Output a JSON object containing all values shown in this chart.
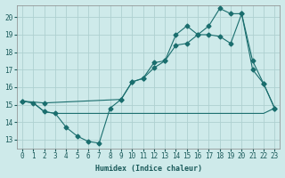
{
  "xlabel": "Humidex (Indice chaleur)",
  "background_color": "#ceeaea",
  "grid_color": "#aed0d0",
  "line_color": "#1a6e6e",
  "xlim": [
    -0.5,
    23.5
  ],
  "ylim": [
    12.5,
    20.7
  ],
  "yticks": [
    13,
    14,
    15,
    16,
    17,
    18,
    19,
    20
  ],
  "xticks": [
    0,
    1,
    2,
    3,
    4,
    5,
    6,
    7,
    8,
    9,
    10,
    11,
    12,
    13,
    14,
    15,
    16,
    17,
    18,
    19,
    20,
    21,
    22,
    23
  ],
  "series1_x": [
    0,
    1,
    2,
    3,
    4,
    5,
    6,
    7,
    8,
    9,
    10,
    11,
    12,
    13,
    14,
    15,
    16,
    17,
    18,
    19,
    20,
    21,
    22,
    23
  ],
  "series1_y": [
    15.2,
    15.1,
    14.6,
    14.5,
    13.7,
    13.2,
    12.9,
    12.8,
    14.8,
    15.3,
    16.3,
    16.5,
    17.1,
    17.5,
    19.0,
    19.5,
    19.0,
    19.0,
    18.9,
    18.5,
    20.2,
    17.0,
    16.2,
    14.8
  ],
  "series2_x": [
    0,
    1,
    2,
    3,
    4,
    5,
    6,
    7,
    8,
    9,
    10,
    11,
    12,
    13,
    14,
    15,
    16,
    17,
    18,
    19,
    20,
    21,
    22,
    23
  ],
  "series2_y": [
    15.2,
    15.1,
    14.6,
    14.5,
    14.5,
    14.5,
    14.5,
    14.5,
    14.5,
    14.5,
    14.5,
    14.5,
    14.5,
    14.5,
    14.5,
    14.5,
    14.5,
    14.5,
    14.5,
    14.5,
    14.5,
    14.5,
    14.5,
    14.8
  ],
  "series3_x": [
    0,
    2,
    9,
    10,
    11,
    12,
    13,
    14,
    15,
    16,
    17,
    18,
    19,
    20,
    21,
    22,
    23
  ],
  "series3_y": [
    15.2,
    15.1,
    15.3,
    16.3,
    16.5,
    17.4,
    17.5,
    18.4,
    18.5,
    19.0,
    19.5,
    20.5,
    20.2,
    20.2,
    17.5,
    16.2,
    14.8
  ]
}
